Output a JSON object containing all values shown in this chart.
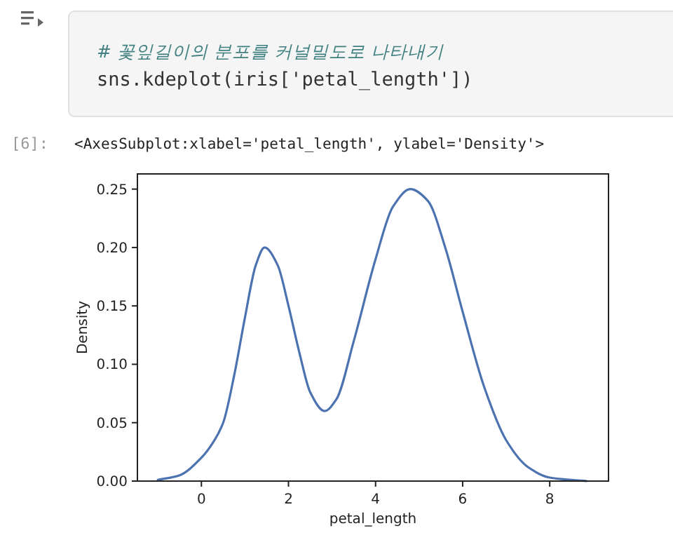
{
  "chart_data": {
    "type": "line",
    "xlabel": "petal_length",
    "ylabel": "Density",
    "annotations": [
      "# 꽃잎길이의 분포를 커널밀도로 나타내기",
      "sns.kdeplot(iris['petal_length'])",
      "[6]:",
      "<AxesSubplot:xlabel='petal_length', ylabel='Density'>"
    ],
    "x": [
      -1.0,
      -0.5,
      0,
      0.25,
      0.5,
      0.75,
      1.0,
      1.25,
      1.45,
      1.75,
      2.0,
      2.25,
      2.5,
      2.83,
      3.1,
      3.5,
      4.0,
      4.4,
      4.8,
      5.2,
      5.6,
      6.0,
      6.5,
      7.0,
      7.5,
      8.0,
      8.5,
      8.85
    ],
    "series": [
      {
        "color": "#4c72b0",
        "values": [
          0.001,
          0.005,
          0.02,
          0.032,
          0.05,
          0.09,
          0.14,
          0.185,
          0.2,
          0.185,
          0.15,
          0.11,
          0.076,
          0.06,
          0.07,
          0.12,
          0.19,
          0.235,
          0.25,
          0.24,
          0.2,
          0.145,
          0.08,
          0.035,
          0.012,
          0.003,
          0.001,
          0.0
        ]
      }
    ],
    "xlim": [
      -1.47,
      9.35
    ],
    "ylim": [
      0,
      0.263
    ],
    "xticks": [
      0,
      2,
      4,
      6,
      8
    ],
    "yticks": [
      {
        "value": 0,
        "label": "0.00"
      },
      {
        "value": 0.05,
        "label": "0.05"
      },
      {
        "value": 0.1,
        "label": "0.10"
      },
      {
        "value": 0.15,
        "label": "0.15"
      },
      {
        "value": 0.2,
        "label": "0.20"
      },
      {
        "value": 0.25,
        "label": "0.25"
      }
    ],
    "grid": false,
    "marker": "none",
    "line_style": "solid"
  }
}
